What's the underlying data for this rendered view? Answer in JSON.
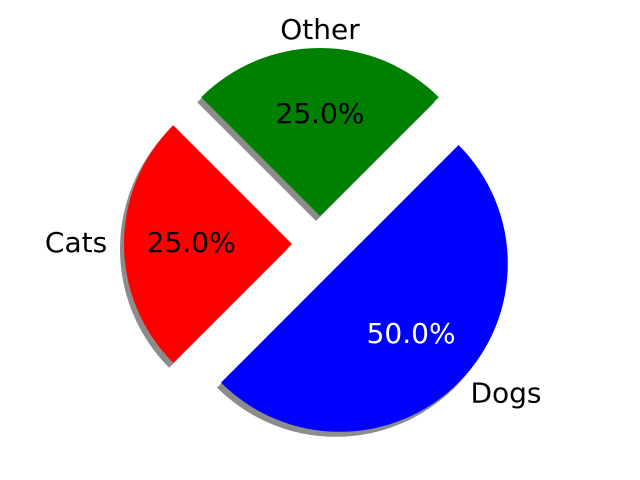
{
  "chart_data": {
    "type": "pie",
    "categories": [
      "Cats",
      "Dogs",
      "Other"
    ],
    "values": [
      25,
      50,
      25
    ],
    "percent_labels": [
      "25.0%",
      "50.0%",
      "25.0%"
    ],
    "colors": [
      "#ff0000",
      "#0000ff",
      "#008000"
    ],
    "percent_label_colors": [
      "#000000",
      "#ffffff",
      "#000000"
    ],
    "exploded": [
      true,
      true,
      true
    ],
    "shadow": true,
    "title": "",
    "legend": "none"
  }
}
